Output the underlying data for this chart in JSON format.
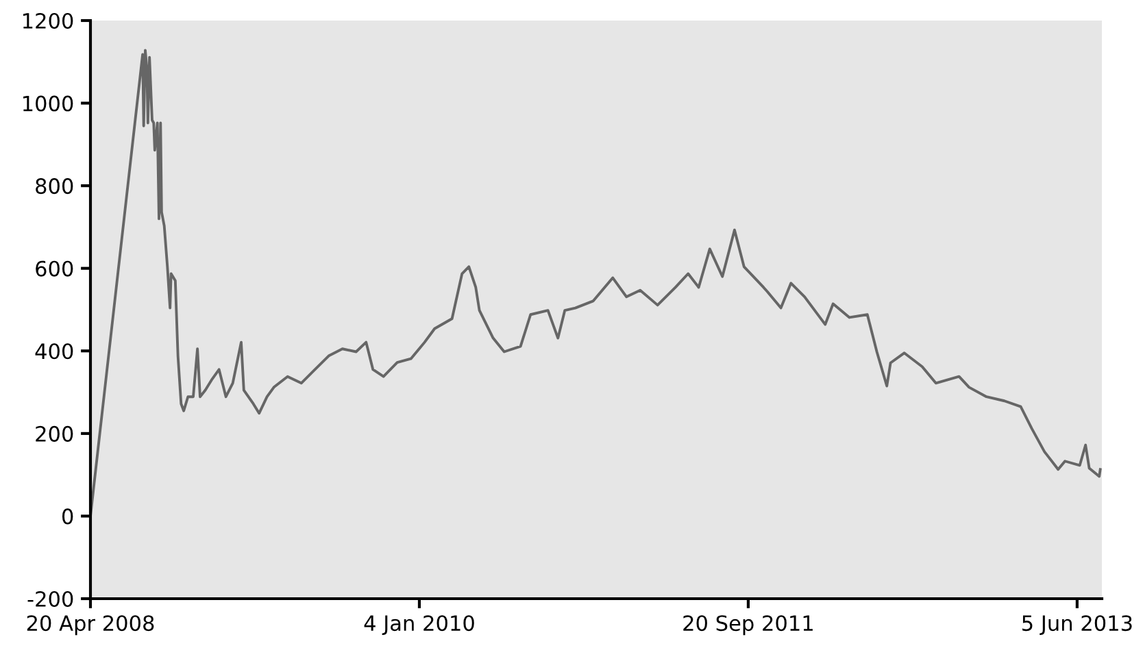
{
  "chart_data": {
    "type": "line",
    "x": [
      "2008-04-20",
      "2008-07-28",
      "2008-07-30",
      "2008-08-02",
      "2008-08-05",
      "2008-08-07",
      "2008-08-10",
      "2008-08-15",
      "2008-08-18",
      "2008-08-20",
      "2008-08-25",
      "2008-08-28",
      "2008-08-31",
      "2008-09-02",
      "2008-09-07",
      "2008-09-13",
      "2008-09-18",
      "2008-09-20",
      "2008-09-28",
      "2008-10-03",
      "2008-10-09",
      "2008-10-14",
      "2008-10-22",
      "2008-11-01",
      "2008-11-09",
      "2008-11-14",
      "2008-11-24",
      "2008-12-07",
      "2008-12-20",
      "2009-01-02",
      "2009-01-15",
      "2009-01-31",
      "2009-02-05",
      "2009-02-23",
      "2009-03-06",
      "2009-03-21",
      "2009-04-03",
      "2009-04-29",
      "2009-05-25",
      "2009-06-20",
      "2009-07-16",
      "2009-08-11",
      "2009-09-06",
      "2009-09-25",
      "2009-10-08",
      "2009-10-28",
      "2009-11-23",
      "2009-12-19",
      "2010-01-14",
      "2010-02-02",
      "2010-03-07",
      "2010-03-26",
      "2010-04-08",
      "2010-04-21",
      "2010-04-28",
      "2010-05-24",
      "2010-06-14",
      "2010-07-15",
      "2010-08-03",
      "2010-09-05",
      "2010-09-24",
      "2010-10-07",
      "2010-10-27",
      "2010-11-30",
      "2011-01-06",
      "2011-02-01",
      "2011-02-27",
      "2011-04-01",
      "2011-05-05",
      "2011-05-29",
      "2011-06-18",
      "2011-07-09",
      "2011-08-02",
      "2011-08-25",
      "2011-09-12",
      "2011-10-19",
      "2011-10-26",
      "2011-11-21",
      "2011-12-10",
      "2012-01-05",
      "2012-02-13",
      "2012-02-28",
      "2012-03-30",
      "2012-05-03",
      "2012-05-21",
      "2012-06-09",
      "2012-06-16",
      "2012-07-12",
      "2012-08-15",
      "2012-09-10",
      "2012-10-24",
      "2012-11-12",
      "2012-12-15",
      "2013-01-18",
      "2013-02-18",
      "2013-03-11",
      "2013-04-04",
      "2013-04-30",
      "2013-05-13",
      "2013-06-10",
      "2013-06-21",
      "2013-06-28",
      "2013-07-17",
      "2013-07-19"
    ],
    "series": [
      {
        "color": "#666666",
        "values": [
          0,
          1118,
          945,
          1128,
          1085,
          952,
          1111,
          959,
          952,
          886,
          952,
          720,
          952,
          736,
          703,
          604,
          504,
          587,
          570,
          388,
          272,
          255,
          289,
          289,
          405,
          289,
          305,
          332,
          355,
          289,
          322,
          421,
          305,
          272,
          249,
          289,
          312,
          338,
          322,
          355,
          388,
          405,
          398,
          421,
          355,
          338,
          372,
          381,
          421,
          454,
          478,
          587,
          604,
          554,
          498,
          431,
          398,
          411,
          488,
          498,
          431,
          498,
          504,
          521,
          577,
          531,
          547,
          511,
          554,
          587,
          554,
          647,
          580,
          693,
          604,
          554,
          544,
          504,
          564,
          531,
          464,
          514,
          481,
          488,
          398,
          315,
          371,
          395,
          362,
          322,
          338,
          312,
          289,
          279,
          265,
          212,
          156,
          113,
          133,
          123,
          172,
          116,
          96,
          113
        ]
      }
    ],
    "xlim": [
      "2008-04-20",
      "2013-07-22"
    ],
    "xticks": [
      {
        "value": "2008-04-20",
        "label": "20 Apr 2008"
      },
      {
        "value": "2010-01-04",
        "label": "4 Jan 2010"
      },
      {
        "value": "2011-09-20",
        "label": "20 Sep 2011"
      },
      {
        "value": "2013-06-05",
        "label": "5 Jun 2013"
      }
    ],
    "ylim": [
      -200,
      1200
    ],
    "yticks": [
      -200,
      0,
      200,
      400,
      600,
      800,
      1000,
      1200
    ],
    "marker": "none",
    "line_style": "solid"
  }
}
